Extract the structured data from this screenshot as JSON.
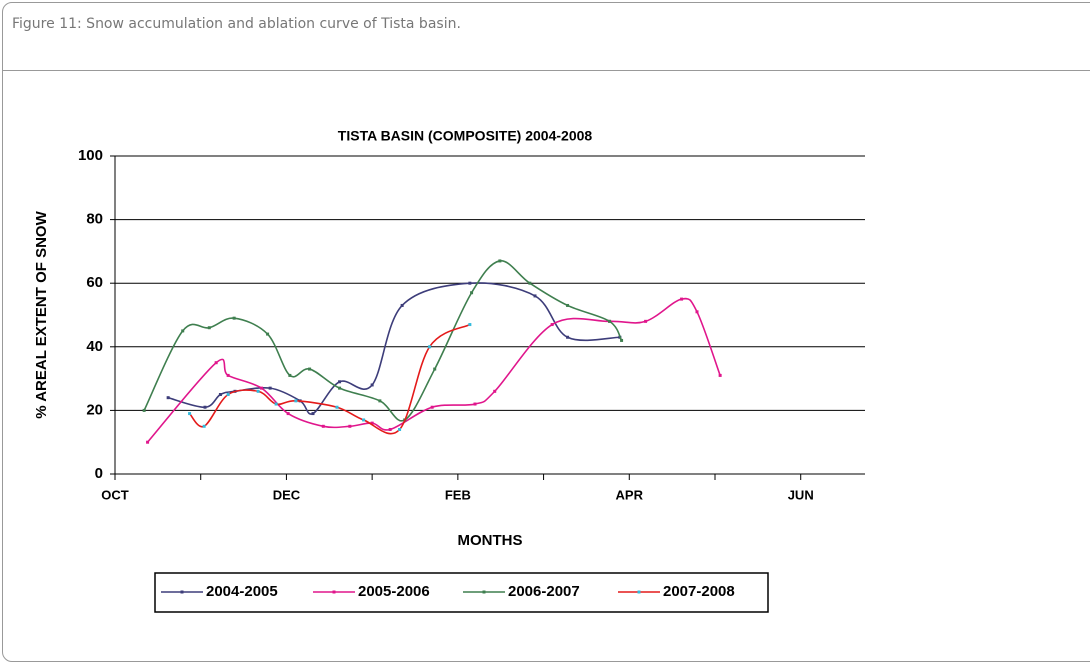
{
  "caption": "Figure 11:  Snow accumulation and ablation curve of Tista basin.",
  "chart_data": {
    "type": "line",
    "title": "TISTA BASIN (COMPOSITE) 2004-2008",
    "x_label": "MONTHS",
    "y_label": "% AREAL EXTENT OF SNOW",
    "xlim": [
      0,
      8.75
    ],
    "ylim": [
      0,
      100
    ],
    "xticks": [
      {
        "value": 0,
        "label": "OCT"
      },
      {
        "value": 2,
        "label": "DEC"
      },
      {
        "value": 4,
        "label": "FEB"
      },
      {
        "value": 6,
        "label": "APR"
      },
      {
        "value": 8,
        "label": "JUN"
      }
    ],
    "minor_xticks": [
      1,
      3,
      5,
      7
    ],
    "yticks": [
      0,
      20,
      40,
      60,
      80,
      100
    ],
    "grid": true,
    "legend": "bottom",
    "series": [
      {
        "name": "2004-2005",
        "color": "#3d3d7a",
        "marker_color": "#3d3d7a",
        "x": [
          0.62,
          1.05,
          1.23,
          1.4,
          1.81,
          2.16,
          2.31,
          2.62,
          3.0,
          3.35,
          4.14,
          4.9,
          5.28,
          5.89
        ],
        "values": [
          24,
          21,
          25,
          26,
          27,
          23,
          19,
          29,
          28,
          53,
          60,
          56,
          43,
          43
        ]
      },
      {
        "name": "2005-2006",
        "color": "#e0168c",
        "marker_color": "#e0168c",
        "x": [
          0.38,
          1.18,
          1.32,
          1.71,
          2.02,
          2.43,
          2.74,
          3.0,
          3.21,
          3.7,
          4.2,
          4.43,
          5.1,
          5.77,
          6.19,
          6.61,
          6.79,
          7.06
        ],
        "values": [
          10,
          35,
          31,
          27,
          19,
          15,
          15,
          16,
          14,
          21,
          22,
          26,
          47,
          48,
          48,
          55,
          51,
          31
        ]
      },
      {
        "name": "2006-2007",
        "color": "#3f7f4f",
        "marker_color": "#3f7f4f",
        "x": [
          0.34,
          0.79,
          1.1,
          1.39,
          1.78,
          2.04,
          2.27,
          2.62,
          3.09,
          3.38,
          3.73,
          4.16,
          4.49,
          4.84,
          5.28,
          5.77,
          5.91
        ],
        "values": [
          20,
          45,
          46,
          49,
          44,
          31,
          33,
          27,
          23,
          17,
          33,
          57,
          67,
          60,
          53,
          48,
          42
        ]
      },
      {
        "name": "2007-2008",
        "color": "#e41a1a",
        "marker_color": "#33bbdd",
        "x": [
          0.87,
          1.04,
          1.32,
          1.67,
          1.88,
          2.11,
          2.59,
          2.9,
          3.32,
          3.67,
          4.14
        ],
        "values": [
          19,
          15,
          25,
          26,
          22,
          23,
          21,
          17,
          14,
          40,
          47
        ]
      }
    ]
  }
}
